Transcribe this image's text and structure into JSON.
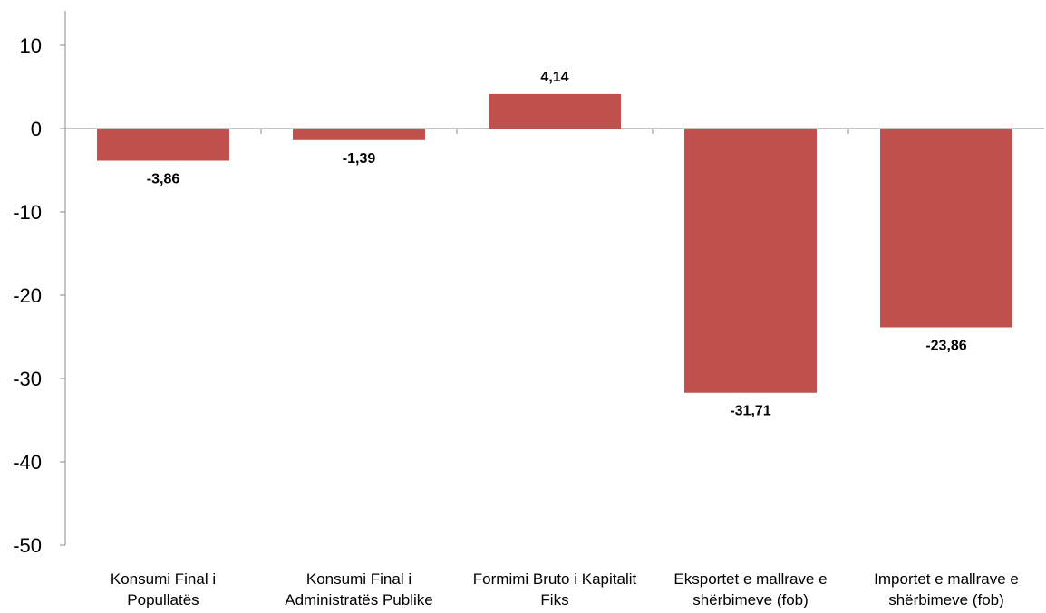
{
  "chart_data": {
    "type": "bar",
    "categories": [
      [
        "Konsumi Final i",
        "Popullatës"
      ],
      [
        "Konsumi Final i",
        "Administratës Publike"
      ],
      [
        "Formimi Bruto i Kapitalit",
        "Fiks"
      ],
      [
        "Eksportet e mallrave e",
        "shërbimeve (fob)"
      ],
      [
        "Importet e mallrave e",
        "shërbimeve (fob)"
      ]
    ],
    "values": [
      -3.86,
      -1.39,
      4.14,
      -31.71,
      -23.86
    ],
    "value_labels": [
      "-3,86",
      "-1,39",
      "4,14",
      "-31,71",
      "-23,86"
    ],
    "ylim": [
      -50,
      10
    ],
    "yticks": [
      10,
      0,
      -10,
      -20,
      -30,
      -40,
      -50
    ],
    "grid": false,
    "legend": "none",
    "bar_color": "#C0504D"
  }
}
